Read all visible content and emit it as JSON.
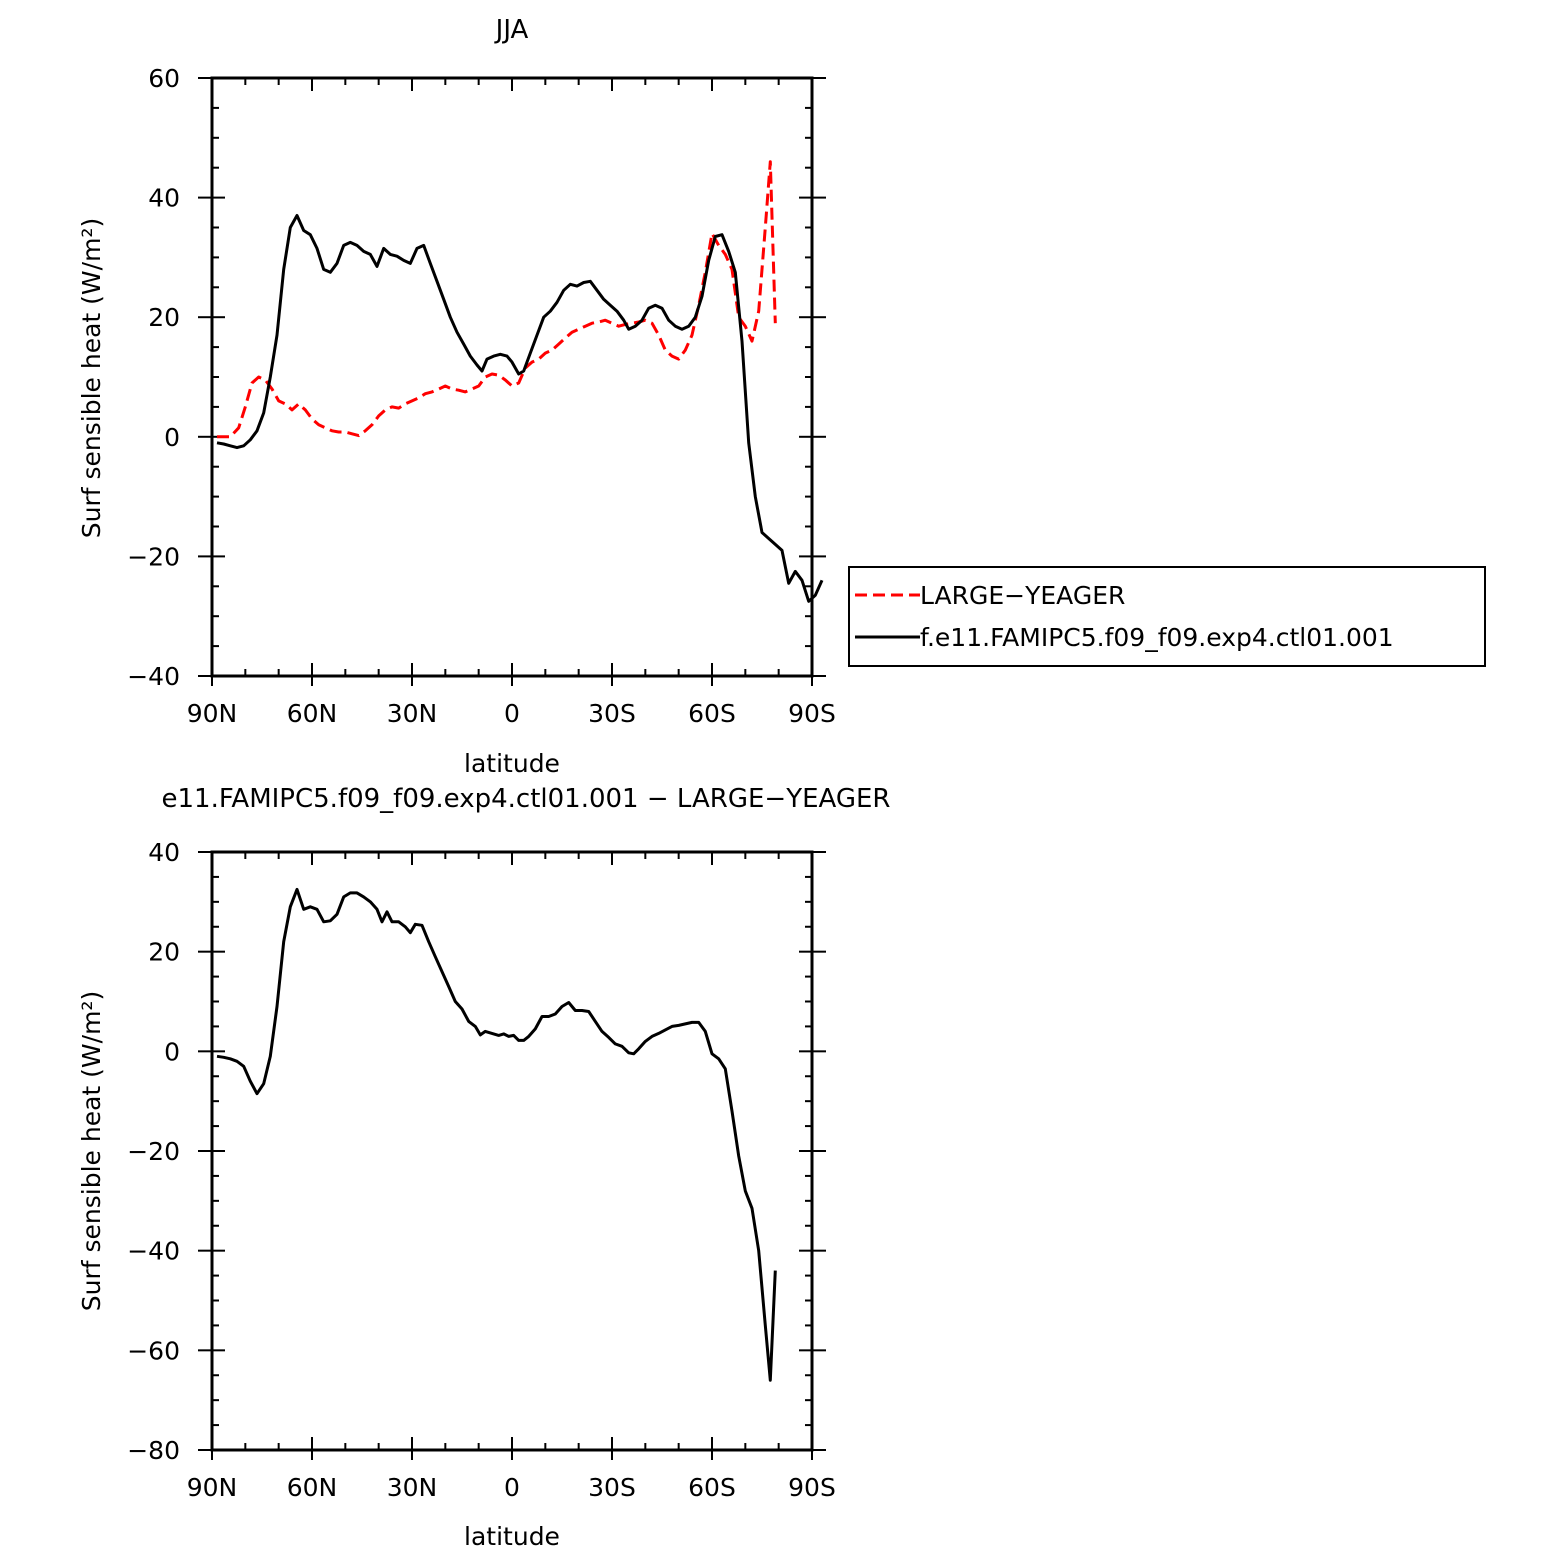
{
  "chart_data": [
    {
      "type": "line",
      "title": "JJA",
      "xlabel": "latitude",
      "ylabel": "Surf sensible heat (W/m²)",
      "xlim": [
        -90,
        90
      ],
      "ylim": [
        -40,
        60
      ],
      "x_ticks": [
        -90,
        -60,
        -30,
        0,
        30,
        60,
        90
      ],
      "x_tick_labels": [
        "90N",
        "60N",
        "30N",
        "0",
        "30S",
        "60S",
        "90S"
      ],
      "y_ticks": [
        -40,
        -20,
        0,
        20,
        40,
        60
      ],
      "y_tick_labels": [
        "−40",
        "−20",
        "0",
        "20",
        "40",
        "60"
      ],
      "legend": {
        "position": "right",
        "entries": [
          "LARGE−YEAGER",
          "f.e11.FAMIPC5.f09_f09.exp4.ctl01.001"
        ]
      },
      "series": [
        {
          "name": "LARGE−YEAGER",
          "color": "#ff0000",
          "dash": "dashed",
          "points": [
            [
              -88.5,
              0
            ],
            [
              -86.5,
              0
            ],
            [
              -84.5,
              0
            ],
            [
              -82,
              1.5
            ],
            [
              -80,
              5
            ],
            [
              -78,
              9
            ],
            [
              -76,
              10
            ],
            [
              -74,
              9.5
            ],
            [
              -72,
              8
            ],
            [
              -70,
              6
            ],
            [
              -68,
              5.5
            ],
            [
              -66,
              4.5
            ],
            [
              -64,
              5.5
            ],
            [
              -62,
              4.5
            ],
            [
              -60,
              3
            ],
            [
              -58,
              2
            ],
            [
              -56,
              1.5
            ],
            [
              -54,
              1
            ],
            [
              -52,
              0.8
            ],
            [
              -50,
              0.8
            ],
            [
              -48,
              0.5
            ],
            [
              -46,
              0.2
            ],
            [
              -44,
              1
            ],
            [
              -42,
              2
            ],
            [
              -40,
              3.5
            ],
            [
              -38,
              4.5
            ],
            [
              -36,
              5
            ],
            [
              -34,
              4.8
            ],
            [
              -32,
              5.5
            ],
            [
              -30,
              6
            ],
            [
              -28,
              6.5
            ],
            [
              -26,
              7.2
            ],
            [
              -24,
              7.5
            ],
            [
              -22,
              8
            ],
            [
              -20,
              8.5
            ],
            [
              -18,
              8
            ],
            [
              -16,
              7.8
            ],
            [
              -14,
              7.5
            ],
            [
              -12,
              8
            ],
            [
              -10,
              8.5
            ],
            [
              -8,
              10
            ],
            [
              -6,
              10.5
            ],
            [
              -4,
              10.3
            ],
            [
              -2,
              9.5
            ],
            [
              0,
              8.5
            ],
            [
              2,
              9
            ],
            [
              4,
              11.5
            ],
            [
              6,
              12.5
            ],
            [
              8,
              13
            ],
            [
              10,
              14
            ],
            [
              12,
              14.5
            ],
            [
              14,
              15.5
            ],
            [
              16,
              16.5
            ],
            [
              18,
              17.5
            ],
            [
              20,
              18
            ],
            [
              22,
              18.5
            ],
            [
              24,
              19
            ],
            [
              26,
              19.2
            ],
            [
              28,
              19.5
            ],
            [
              30,
              19
            ],
            [
              32,
              18.5
            ],
            [
              34,
              18.8
            ],
            [
              36,
              19
            ],
            [
              38,
              19.2
            ],
            [
              40,
              19.5
            ],
            [
              42,
              19
            ],
            [
              44,
              17
            ],
            [
              46,
              14.5
            ],
            [
              48,
              13.5
            ],
            [
              50,
              13
            ],
            [
              52,
              14.5
            ],
            [
              54,
              17
            ],
            [
              56,
              22
            ],
            [
              58,
              27.5
            ],
            [
              60,
              34
            ],
            [
              62,
              32
            ],
            [
              64,
              30.5
            ],
            [
              66,
              28
            ],
            [
              68,
              20
            ],
            [
              70,
              18.5
            ],
            [
              72,
              16
            ],
            [
              74,
              21
            ],
            [
              76,
              35
            ],
            [
              77.5,
              46
            ],
            [
              79,
              19
            ]
          ]
        },
        {
          "name": "f.e11.FAMIPC5.f09_f09.exp4.ctl01.001",
          "color": "#000000",
          "dash": "solid",
          "points": [
            [
              -88.5,
              -1
            ],
            [
              -86.5,
              -1.2
            ],
            [
              -84.5,
              -1.5
            ],
            [
              -82.5,
              -1.8
            ],
            [
              -80.5,
              -1.5
            ],
            [
              -78.5,
              -0.5
            ],
            [
              -76.5,
              1
            ],
            [
              -74.5,
              4
            ],
            [
              -72.5,
              10
            ],
            [
              -70.5,
              17
            ],
            [
              -68.5,
              28
            ],
            [
              -66.5,
              35
            ],
            [
              -64.5,
              37
            ],
            [
              -62.5,
              34.5
            ],
            [
              -60.5,
              33.8
            ],
            [
              -58.5,
              31.5
            ],
            [
              -56.5,
              28
            ],
            [
              -54.5,
              27.5
            ],
            [
              -52.5,
              29
            ],
            [
              -50.5,
              32
            ],
            [
              -48.5,
              32.5
            ],
            [
              -46.5,
              32
            ],
            [
              -44.5,
              31
            ],
            [
              -42.5,
              30.5
            ],
            [
              -40.5,
              28.5
            ],
            [
              -38.5,
              31.5
            ],
            [
              -36.5,
              30.5
            ],
            [
              -34.5,
              30.2
            ],
            [
              -32.5,
              29.5
            ],
            [
              -30.5,
              29
            ],
            [
              -28.5,
              31.5
            ],
            [
              -26.5,
              32
            ],
            [
              -24.5,
              29
            ],
            [
              -22.5,
              26
            ],
            [
              -20.5,
              23
            ],
            [
              -18.5,
              20
            ],
            [
              -16.5,
              17.5
            ],
            [
              -14.5,
              15.5
            ],
            [
              -12.5,
              13.5
            ],
            [
              -10.5,
              12
            ],
            [
              -9,
              11
            ],
            [
              -7.5,
              13
            ],
            [
              -5.5,
              13.5
            ],
            [
              -3.5,
              13.8
            ],
            [
              -1.5,
              13.5
            ],
            [
              0,
              12.5
            ],
            [
              2,
              10.5
            ],
            [
              3.5,
              11
            ],
            [
              5.5,
              14
            ],
            [
              7.5,
              17
            ],
            [
              9.5,
              20
            ],
            [
              11.5,
              21
            ],
            [
              13.5,
              22.5
            ],
            [
              15.5,
              24.5
            ],
            [
              17.5,
              25.5
            ],
            [
              19.5,
              25.2
            ],
            [
              21.5,
              25.8
            ],
            [
              23.5,
              26
            ],
            [
              25.5,
              24.5
            ],
            [
              27.5,
              23
            ],
            [
              29.5,
              22
            ],
            [
              31.5,
              21
            ],
            [
              33.5,
              19.5
            ],
            [
              35,
              18
            ],
            [
              37,
              18.5
            ],
            [
              39,
              19.5
            ],
            [
              41,
              21.5
            ],
            [
              43,
              22
            ],
            [
              45,
              21.5
            ],
            [
              47,
              19.5
            ],
            [
              49,
              18.5
            ],
            [
              51,
              18
            ],
            [
              53,
              18.5
            ],
            [
              55,
              20
            ],
            [
              57,
              23.5
            ],
            [
              59,
              29.5
            ],
            [
              61,
              33.5
            ],
            [
              63,
              33.8
            ],
            [
              65,
              31
            ],
            [
              67,
              27.5
            ],
            [
              69,
              16
            ],
            [
              71,
              -1
            ],
            [
              73,
              -10
            ],
            [
              75,
              -16
            ],
            [
              77,
              -17
            ],
            [
              79,
              -18
            ],
            [
              81,
              -19
            ],
            [
              83,
              -24.5
            ],
            [
              85,
              -22.5
            ],
            [
              87,
              -24
            ],
            [
              89,
              -27.5
            ],
            [
              91,
              -26.5
            ],
            [
              93,
              -24
            ]
          ]
        }
      ]
    },
    {
      "type": "line",
      "title": "e11.FAMIPC5.f09_f09.exp4.ctl01.001 − LARGE−YEAGER",
      "xlabel": "latitude",
      "ylabel": "Surf sensible heat (W/m²)",
      "xlim": [
        -90,
        90
      ],
      "ylim": [
        -80,
        40
      ],
      "x_ticks": [
        -90,
        -60,
        -30,
        0,
        30,
        60,
        90
      ],
      "x_tick_labels": [
        "90N",
        "60N",
        "30N",
        "0",
        "30S",
        "60S",
        "90S"
      ],
      "y_ticks": [
        -80,
        -60,
        -40,
        -20,
        0,
        20,
        40
      ],
      "y_tick_labels": [
        "−80",
        "−60",
        "−40",
        "−20",
        "0",
        "20",
        "40"
      ],
      "series": [
        {
          "color": "#000000",
          "dash": "solid",
          "points": [
            [
              -88.5,
              -1
            ],
            [
              -86.5,
              -1.2
            ],
            [
              -84.5,
              -1.5
            ],
            [
              -82.5,
              -2
            ],
            [
              -80.5,
              -3
            ],
            [
              -78.5,
              -6
            ],
            [
              -76.5,
              -8.5
            ],
            [
              -74.5,
              -6.5
            ],
            [
              -72.5,
              -1
            ],
            [
              -70.5,
              9
            ],
            [
              -68.5,
              22
            ],
            [
              -66.5,
              29
            ],
            [
              -64.5,
              32.5
            ],
            [
              -62.5,
              28.5
            ],
            [
              -60.5,
              29
            ],
            [
              -58.5,
              28.5
            ],
            [
              -56.5,
              26
            ],
            [
              -54.5,
              26.2
            ],
            [
              -52.5,
              27.5
            ],
            [
              -50.5,
              31
            ],
            [
              -48.5,
              31.8
            ],
            [
              -46.5,
              31.8
            ],
            [
              -44.5,
              31
            ],
            [
              -42.5,
              30
            ],
            [
              -40.5,
              28.5
            ],
            [
              -39,
              26
            ],
            [
              -37.5,
              28
            ],
            [
              -36,
              26
            ],
            [
              -34,
              26
            ],
            [
              -32,
              25
            ],
            [
              -30.5,
              23.8
            ],
            [
              -29,
              25.5
            ],
            [
              -27,
              25.3
            ],
            [
              -25,
              22
            ],
            [
              -23,
              19
            ],
            [
              -21,
              16
            ],
            [
              -19,
              13
            ],
            [
              -17,
              10
            ],
            [
              -15,
              8.5
            ],
            [
              -13,
              6
            ],
            [
              -11,
              5
            ],
            [
              -9.5,
              3.3
            ],
            [
              -8,
              4
            ],
            [
              -6,
              3.6
            ],
            [
              -4,
              3.2
            ],
            [
              -2.5,
              3.5
            ],
            [
              -1,
              3
            ],
            [
              0.5,
              3.2
            ],
            [
              2,
              2.2
            ],
            [
              3.5,
              2.2
            ],
            [
              5,
              3
            ],
            [
              7,
              4.5
            ],
            [
              9,
              7
            ],
            [
              11,
              7
            ],
            [
              13,
              7.5
            ],
            [
              15,
              9
            ],
            [
              17,
              9.8
            ],
            [
              19,
              8.2
            ],
            [
              21,
              8.2
            ],
            [
              23,
              8
            ],
            [
              25,
              6
            ],
            [
              27,
              4
            ],
            [
              29,
              2.8
            ],
            [
              31,
              1.5
            ],
            [
              33,
              1
            ],
            [
              35,
              -0.3
            ],
            [
              36.5,
              -0.5
            ],
            [
              38,
              0.5
            ],
            [
              40,
              2
            ],
            [
              42,
              3
            ],
            [
              44,
              3.6
            ],
            [
              46,
              4.3
            ],
            [
              48,
              5
            ],
            [
              50,
              5.2
            ],
            [
              52,
              5.5
            ],
            [
              54,
              5.8
            ],
            [
              56,
              5.8
            ],
            [
              58,
              4
            ],
            [
              60,
              -0.5
            ],
            [
              62,
              -1.5
            ],
            [
              64,
              -3.5
            ],
            [
              66,
              -12
            ],
            [
              68,
              -21
            ],
            [
              70,
              -28
            ],
            [
              72,
              -31.5
            ],
            [
              74,
              -40
            ],
            [
              76,
              -55
            ],
            [
              77.5,
              -66
            ],
            [
              79,
              -44
            ]
          ]
        }
      ]
    }
  ]
}
